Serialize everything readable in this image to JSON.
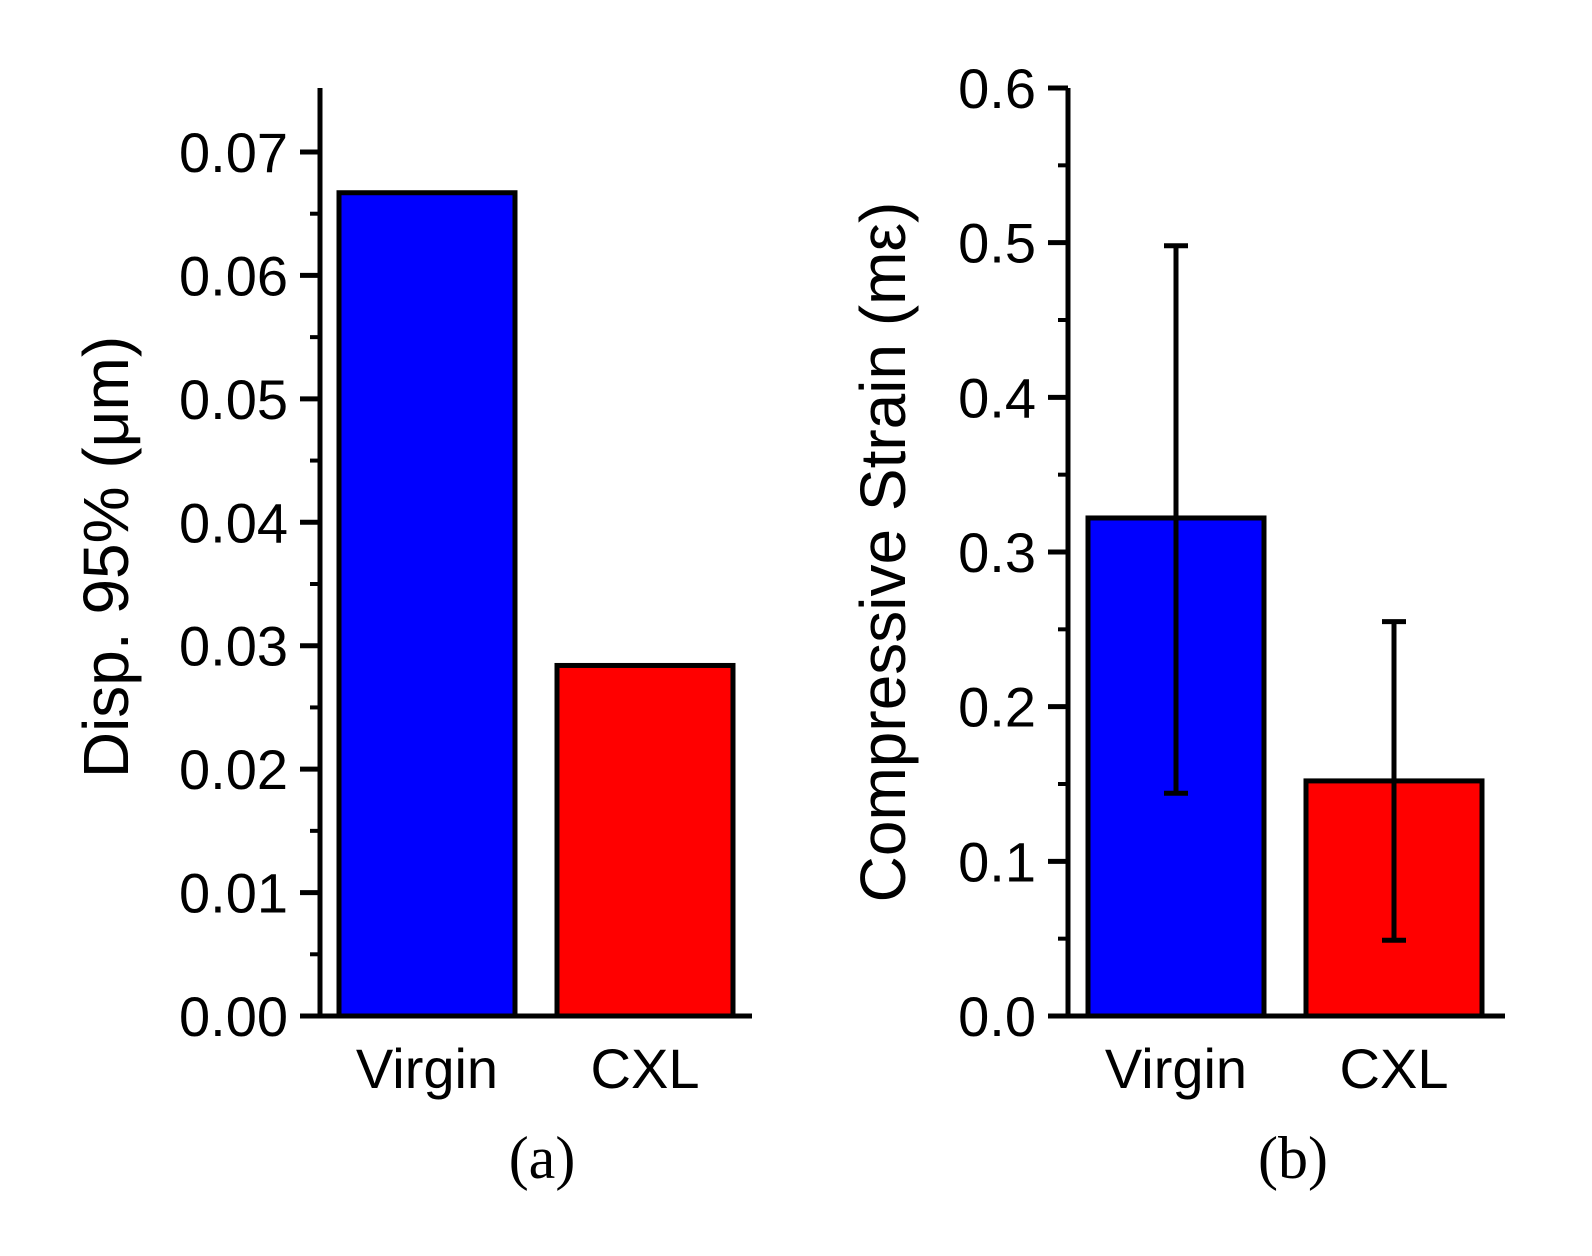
{
  "colors": {
    "virgin": "#0000ff",
    "cxl": "#ff0000",
    "stroke": "#000000"
  },
  "chart_data": [
    {
      "type": "bar",
      "panel": "a",
      "caption": "(a)",
      "ylabel": "Disp. 95% (μm)",
      "categories": [
        "Virgin",
        "CXL"
      ],
      "values": [
        0.0667,
        0.0284
      ],
      "ylim": [
        0,
        0.075
      ],
      "yticks": [
        0.0,
        0.01,
        0.02,
        0.03,
        0.04,
        0.05,
        0.06,
        0.07
      ],
      "ytick_labels": [
        "0.00",
        "0.01",
        "0.02",
        "0.03",
        "0.04",
        "0.05",
        "0.06",
        "0.07"
      ],
      "error_bars": false
    },
    {
      "type": "bar",
      "panel": "b",
      "caption": "(b)",
      "ylabel": "Compressive Strain (mε)",
      "categories": [
        "Virgin",
        "CXL"
      ],
      "values": [
        0.322,
        0.152
      ],
      "errors_low": [
        0.144,
        0.049
      ],
      "errors_high": [
        0.498,
        0.255
      ],
      "ylim": [
        0,
        0.6
      ],
      "yticks": [
        0.0,
        0.1,
        0.2,
        0.3,
        0.4,
        0.5,
        0.6
      ],
      "ytick_labels": [
        "0.0",
        "0.1",
        "0.2",
        "0.3",
        "0.4",
        "0.5",
        "0.6"
      ],
      "error_bars": true
    }
  ]
}
